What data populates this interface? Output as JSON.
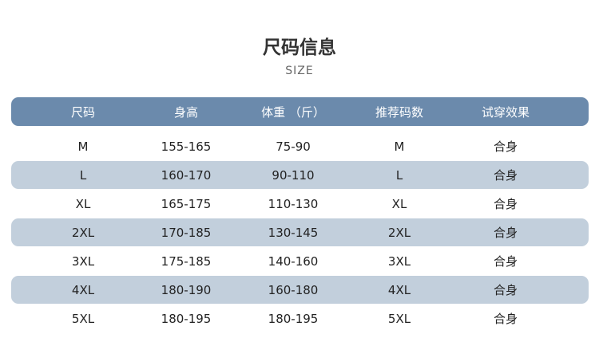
{
  "title": "尺码信息",
  "subtitle": "SIZE",
  "colors": {
    "header": "#6b8aac",
    "stripe": "#c2cfdc"
  },
  "headers": [
    "尺码",
    "身高",
    "体重 （斤）",
    "推荐码数",
    "试穿效果"
  ],
  "rows": [
    [
      "M",
      "155-165",
      "75-90",
      "M",
      "合身"
    ],
    [
      "L",
      "160-170",
      "90-110",
      "L",
      "合身"
    ],
    [
      "XL",
      "165-175",
      "110-130",
      "XL",
      "合身"
    ],
    [
      "2XL",
      "170-185",
      "130-145",
      "2XL",
      "合身"
    ],
    [
      "3XL",
      "175-185",
      "140-160",
      "3XL",
      "合身"
    ],
    [
      "4XL",
      "180-190",
      "160-180",
      "4XL",
      "合身"
    ],
    [
      "5XL",
      "180-195",
      "180-195",
      "5XL",
      "合身"
    ]
  ]
}
